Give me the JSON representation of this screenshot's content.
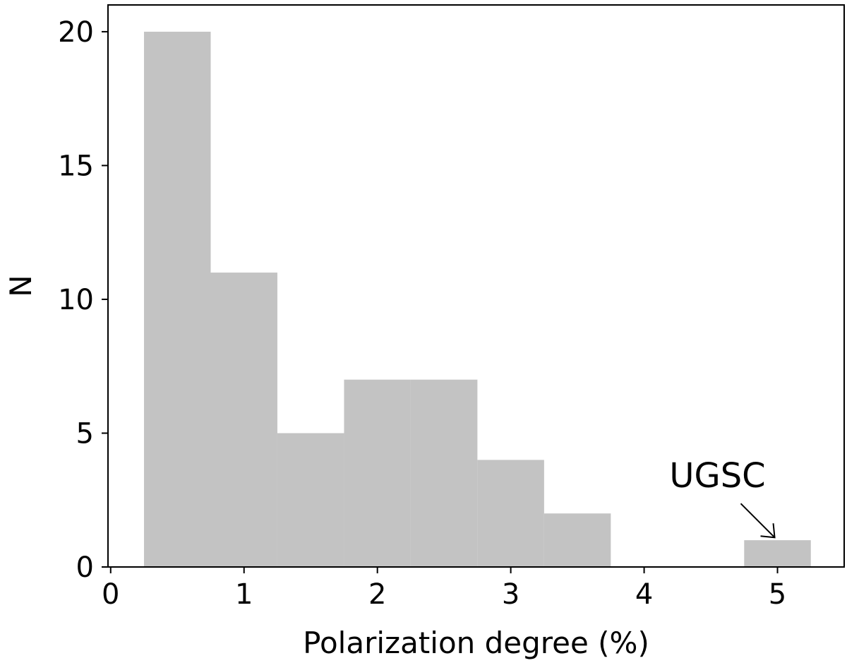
{
  "chart_data": {
    "type": "bar",
    "bins": [
      {
        "x0": 0.25,
        "x1": 0.75,
        "count": 20
      },
      {
        "x0": 0.75,
        "x1": 1.25,
        "count": 11
      },
      {
        "x0": 1.25,
        "x1": 1.75,
        "count": 5
      },
      {
        "x0": 1.75,
        "x1": 2.25,
        "count": 7
      },
      {
        "x0": 2.25,
        "x1": 2.75,
        "count": 7
      },
      {
        "x0": 2.75,
        "x1": 3.25,
        "count": 4
      },
      {
        "x0": 3.25,
        "x1": 3.75,
        "count": 2
      },
      {
        "x0": 3.75,
        "x1": 4.25,
        "count": 0
      },
      {
        "x0": 4.25,
        "x1": 4.75,
        "count": 0
      },
      {
        "x0": 4.75,
        "x1": 5.25,
        "count": 1
      }
    ],
    "title": "",
    "xlabel": "Polarization degree (%)",
    "ylabel": "N",
    "xlim": [
      -0.02,
      5.5
    ],
    "ylim": [
      0,
      21
    ],
    "xticks": [
      "0",
      "1",
      "2",
      "3",
      "4",
      "5"
    ],
    "yticks": [
      "0",
      "5",
      "10",
      "15",
      "20"
    ],
    "bar_color": "#c3c3c3",
    "grid": false,
    "annotation": {
      "text": "UGSC",
      "x": 5.0,
      "y": 1.05
    }
  }
}
